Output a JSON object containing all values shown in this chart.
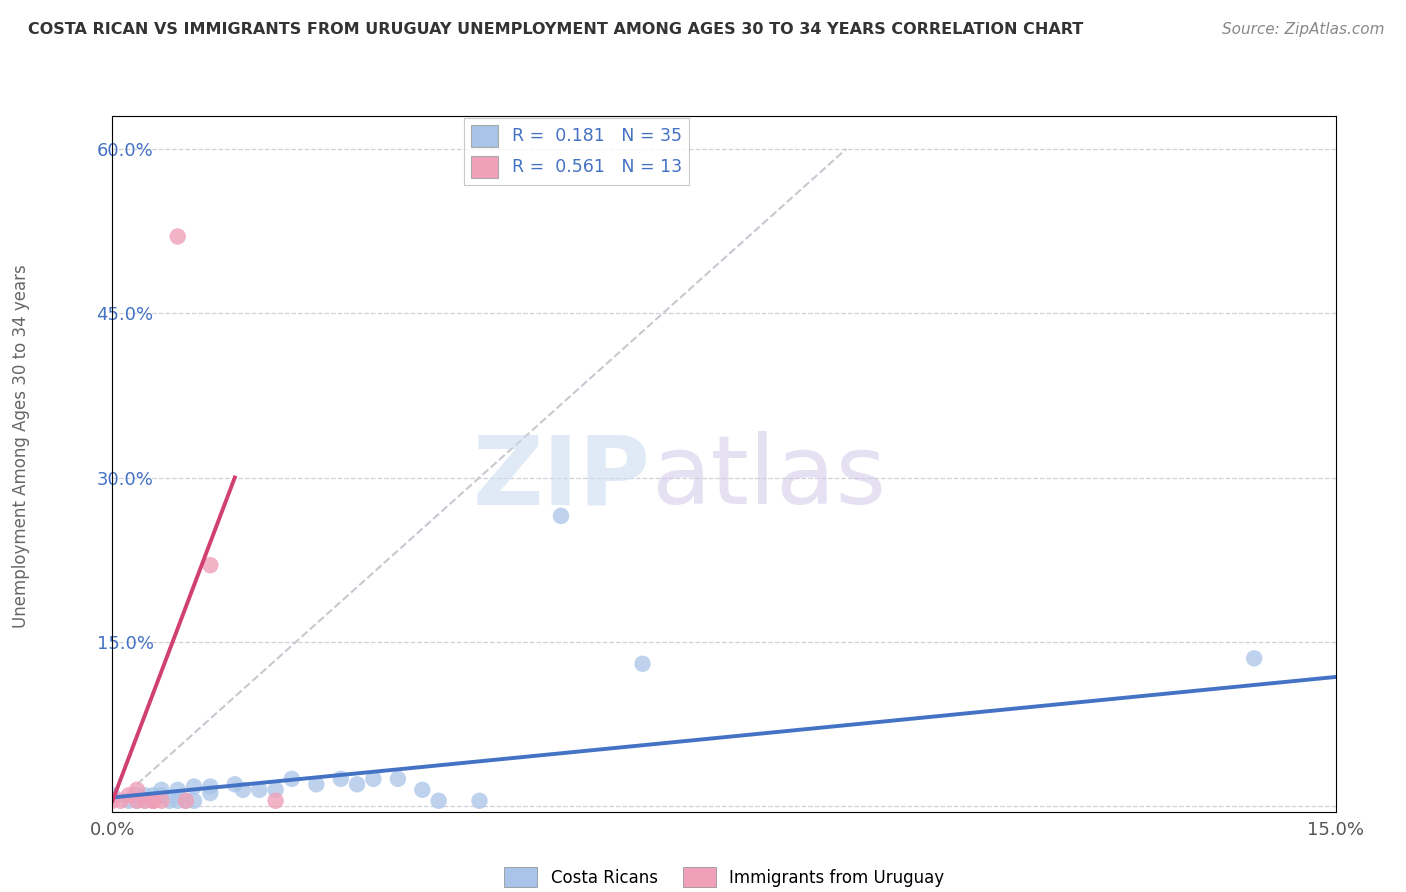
{
  "title": "COSTA RICAN VS IMMIGRANTS FROM URUGUAY UNEMPLOYMENT AMONG AGES 30 TO 34 YEARS CORRELATION CHART",
  "source": "Source: ZipAtlas.com",
  "ylabel": "Unemployment Among Ages 30 to 34 years",
  "xmin": 0.0,
  "xmax": 0.15,
  "ymin": -0.005,
  "ymax": 0.63,
  "yticks": [
    0.0,
    0.15,
    0.3,
    0.45,
    0.6
  ],
  "ytick_labels": [
    "",
    "15.0%",
    "30.0%",
    "45.0%",
    "60.0%"
  ],
  "xticks": [
    0.0,
    0.15
  ],
  "xtick_labels": [
    "0.0%",
    "15.0%"
  ],
  "blue_color": "#a8c4e8",
  "pink_color": "#f0a0b8",
  "trend_blue": "#4472c4",
  "trend_pink": "#d04070",
  "grid_color": "#d0d0d8",
  "ref_line_color": "#c8c8d0",
  "blue_scatter_x": [
    0.0,
    0.002,
    0.003,
    0.003,
    0.004,
    0.004,
    0.005,
    0.005,
    0.005,
    0.006,
    0.006,
    0.007,
    0.008,
    0.008,
    0.009,
    0.01,
    0.01,
    0.012,
    0.012,
    0.015,
    0.016,
    0.018,
    0.02,
    0.022,
    0.025,
    0.028,
    0.03,
    0.032,
    0.035,
    0.038,
    0.04,
    0.045,
    0.055,
    0.065,
    0.14
  ],
  "blue_scatter_y": [
    0.01,
    0.005,
    0.005,
    0.01,
    0.005,
    0.01,
    0.005,
    0.005,
    0.01,
    0.015,
    0.01,
    0.005,
    0.005,
    0.015,
    0.005,
    0.005,
    0.018,
    0.012,
    0.018,
    0.02,
    0.015,
    0.015,
    0.015,
    0.025,
    0.02,
    0.025,
    0.02,
    0.025,
    0.025,
    0.015,
    0.005,
    0.005,
    0.265,
    0.13,
    0.135
  ],
  "pink_scatter_x": [
    0.0,
    0.001,
    0.002,
    0.003,
    0.003,
    0.004,
    0.005,
    0.005,
    0.006,
    0.008,
    0.009,
    0.012,
    0.02
  ],
  "pink_scatter_y": [
    0.005,
    0.005,
    0.01,
    0.005,
    0.015,
    0.005,
    0.005,
    0.005,
    0.005,
    0.52,
    0.005,
    0.22,
    0.005
  ],
  "blue_trend_x": [
    0.0,
    0.15
  ],
  "blue_trend_y": [
    0.008,
    0.118
  ],
  "pink_trend_x": [
    0.0,
    0.015
  ],
  "pink_trend_y": [
    0.005,
    0.3
  ],
  "ref_line_x": [
    0.0,
    0.09
  ],
  "ref_line_y": [
    0.0,
    0.6
  ]
}
